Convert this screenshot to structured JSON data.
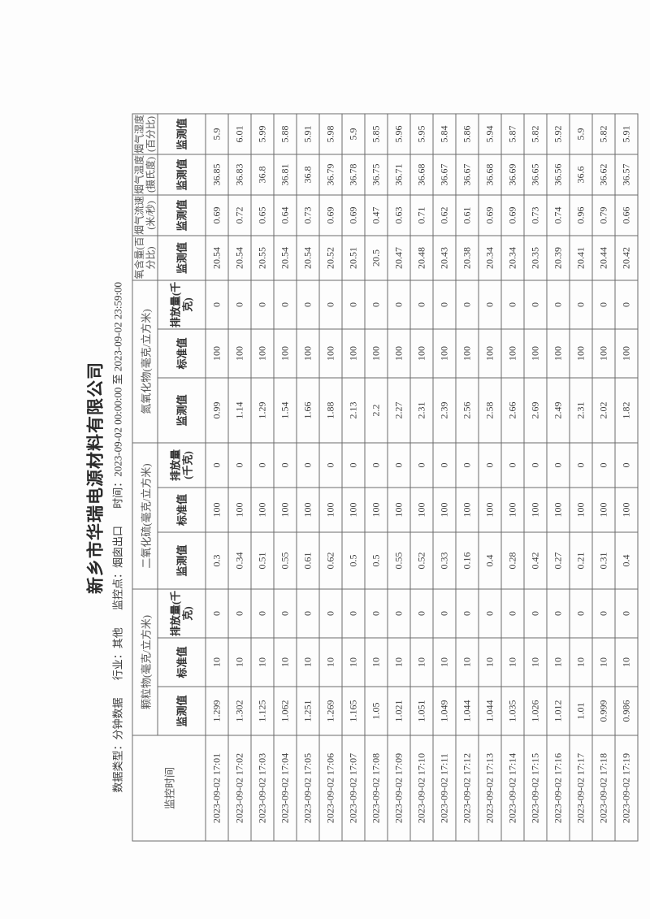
{
  "title": "新乡市华瑞电源材料有限公司",
  "info": {
    "data_type": "数据类型：分钟数据",
    "industry": "行业：其他",
    "monitor_point": "监控点：烟囱出口",
    "time_range": "时间：2023-09-02 00:00:00 至 2023-09-02 23:59:00"
  },
  "headers": {
    "time": "监控时间",
    "pm": "颗粒物(毫克/立方米)",
    "so2": "二氧化硫(毫克/立方米)",
    "nox": "氮氧化物(毫克/立方米)",
    "o2": "氧含量(百分比)",
    "flow": "烟气流速(米/秒)",
    "temp": "烟气温度(摄氏度)",
    "humid": "烟气湿度(百分比)",
    "measured": "监测值",
    "standard": "标准值",
    "emission": "排放量(千克)"
  },
  "rows": [
    [
      "2023-09-02 17:01",
      "1.299",
      "10",
      "0",
      "0.3",
      "100",
      "0",
      "0.99",
      "100",
      "0",
      "20.54",
      "0.69",
      "36.85",
      "5.9"
    ],
    [
      "2023-09-02 17:02",
      "1.302",
      "10",
      "0",
      "0.34",
      "100",
      "0",
      "1.14",
      "100",
      "0",
      "20.54",
      "0.72",
      "36.83",
      "6.01"
    ],
    [
      "2023-09-02 17:03",
      "1.125",
      "10",
      "0",
      "0.51",
      "100",
      "0",
      "1.29",
      "100",
      "0",
      "20.55",
      "0.65",
      "36.8",
      "5.99"
    ],
    [
      "2023-09-02 17:04",
      "1.062",
      "10",
      "0",
      "0.55",
      "100",
      "0",
      "1.54",
      "100",
      "0",
      "20.54",
      "0.64",
      "36.81",
      "5.88"
    ],
    [
      "2023-09-02 17:05",
      "1.251",
      "10",
      "0",
      "0.61",
      "100",
      "0",
      "1.66",
      "100",
      "0",
      "20.54",
      "0.73",
      "36.8",
      "5.91"
    ],
    [
      "2023-09-02 17:06",
      "1.269",
      "10",
      "0",
      "0.62",
      "100",
      "0",
      "1.88",
      "100",
      "0",
      "20.52",
      "0.69",
      "36.79",
      "5.98"
    ],
    [
      "2023-09-02 17:07",
      "1.165",
      "10",
      "0",
      "0.5",
      "100",
      "0",
      "2.13",
      "100",
      "0",
      "20.51",
      "0.69",
      "36.78",
      "5.9"
    ],
    [
      "2023-09-02 17:08",
      "1.05",
      "10",
      "0",
      "0.5",
      "100",
      "0",
      "2.2",
      "100",
      "0",
      "20.5",
      "0.47",
      "36.75",
      "5.85"
    ],
    [
      "2023-09-02 17:09",
      "1.021",
      "10",
      "0",
      "0.55",
      "100",
      "0",
      "2.27",
      "100",
      "0",
      "20.47",
      "0.63",
      "36.71",
      "5.96"
    ],
    [
      "2023-09-02 17:10",
      "1.051",
      "10",
      "0",
      "0.52",
      "100",
      "0",
      "2.31",
      "100",
      "0",
      "20.48",
      "0.71",
      "36.68",
      "5.95"
    ],
    [
      "2023-09-02 17:11",
      "1.049",
      "10",
      "0",
      "0.33",
      "100",
      "0",
      "2.39",
      "100",
      "0",
      "20.43",
      "0.62",
      "36.67",
      "5.84"
    ],
    [
      "2023-09-02 17:12",
      "1.044",
      "10",
      "0",
      "0.16",
      "100",
      "0",
      "2.56",
      "100",
      "0",
      "20.38",
      "0.61",
      "36.67",
      "5.86"
    ],
    [
      "2023-09-02 17:13",
      "1.044",
      "10",
      "0",
      "0.4",
      "100",
      "0",
      "2.58",
      "100",
      "0",
      "20.34",
      "0.69",
      "36.68",
      "5.94"
    ],
    [
      "2023-09-02 17:14",
      "1.035",
      "10",
      "0",
      "0.28",
      "100",
      "0",
      "2.66",
      "100",
      "0",
      "20.34",
      "0.69",
      "36.69",
      "5.87"
    ],
    [
      "2023-09-02 17:15",
      "1.026",
      "10",
      "0",
      "0.42",
      "100",
      "0",
      "2.69",
      "100",
      "0",
      "20.35",
      "0.73",
      "36.65",
      "5.82"
    ],
    [
      "2023-09-02 17:16",
      "1.012",
      "10",
      "0",
      "0.27",
      "100",
      "0",
      "2.49",
      "100",
      "0",
      "20.39",
      "0.74",
      "36.56",
      "5.92"
    ],
    [
      "2023-09-02 17:17",
      "1.01",
      "10",
      "0",
      "0.21",
      "100",
      "0",
      "2.31",
      "100",
      "0",
      "20.41",
      "0.96",
      "36.6",
      "5.9"
    ],
    [
      "2023-09-02 17:18",
      "0.999",
      "10",
      "0",
      "0.31",
      "100",
      "0",
      "2.02",
      "100",
      "0",
      "20.44",
      "0.79",
      "36.62",
      "5.82"
    ],
    [
      "2023-09-02 17:19",
      "0.986",
      "10",
      "0",
      "0.4",
      "100",
      "0",
      "1.82",
      "100",
      "0",
      "20.42",
      "0.66",
      "36.57",
      "5.91"
    ]
  ]
}
